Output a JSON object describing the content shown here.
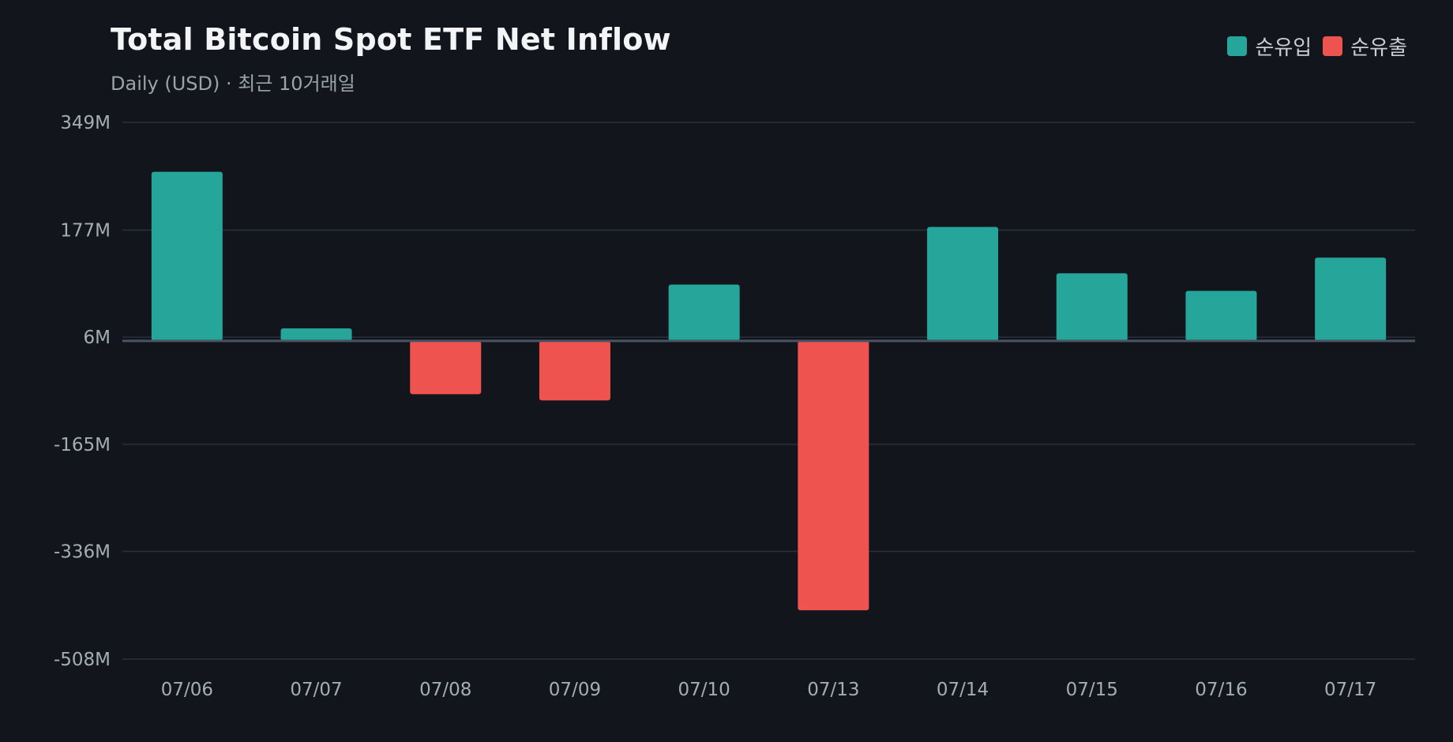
{
  "header": {
    "title": "Total Bitcoin Spot ETF Net Inflow",
    "subtitle": "Daily (USD) · 최근 10거래일"
  },
  "legend": {
    "inflow_label": "순유입",
    "outflow_label": "순유출"
  },
  "colors": {
    "background": "#12161c",
    "inflow": "#26a69a",
    "outflow": "#ef5350",
    "grid": "#2a313a",
    "zero_line": "#4a5361",
    "tick_text": "#a4acb5"
  },
  "chart_data": {
    "type": "bar",
    "title": "Total Bitcoin Spot ETF Net Inflow",
    "subtitle": "Daily (USD) · 최근 10거래일",
    "categories": [
      "07/06",
      "07/07",
      "07/08",
      "07/09",
      "07/10",
      "07/13",
      "07/14",
      "07/15",
      "07/16",
      "07/17"
    ],
    "values": [
      270,
      20,
      -85,
      -95,
      90,
      -430,
      182,
      108,
      80,
      133
    ],
    "unit": "M",
    "ylim": [
      -508,
      349
    ],
    "yticks": [
      349,
      177,
      6,
      -165,
      -336,
      -508
    ],
    "ytick_labels": [
      "349M",
      "177M",
      "6M",
      "-165M",
      "-336M",
      "-508M"
    ],
    "grid": true,
    "legend_position": "top-right"
  }
}
